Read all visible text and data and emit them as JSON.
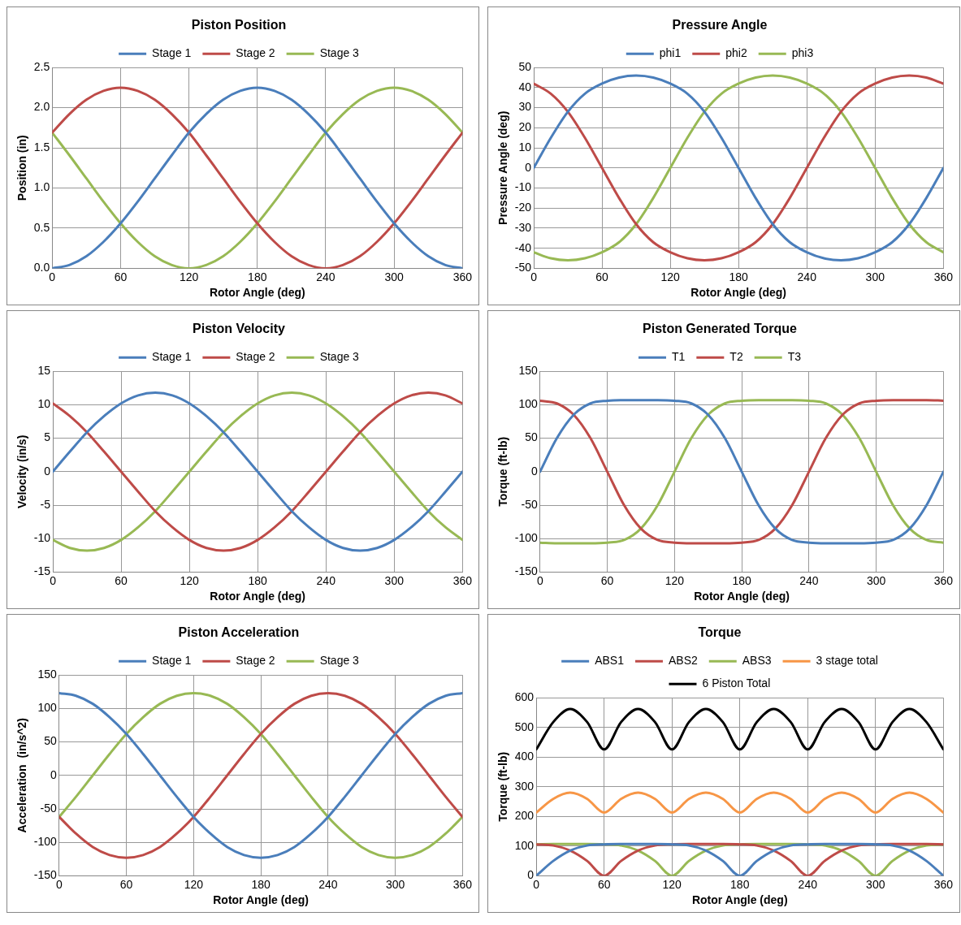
{
  "chart_data": [
    {
      "type": "line",
      "title": "Piston Position",
      "xlabel": "Rotor Angle (deg)",
      "ylabel": "Position (in)",
      "x": [
        0,
        15,
        30,
        45,
        60,
        75,
        90,
        105,
        120,
        135,
        150,
        165,
        180,
        195,
        210,
        225,
        240,
        255,
        270,
        285,
        300,
        315,
        330,
        345,
        360
      ],
      "xlim": [
        0,
        360
      ],
      "xticks": [
        0,
        60,
        120,
        180,
        240,
        300,
        360
      ],
      "ylim": [
        0,
        2.5
      ],
      "yticks": [
        {
          "value": 0,
          "label": "0.0"
        },
        {
          "value": 0.5,
          "label": "0.5"
        },
        {
          "value": 1,
          "label": "1.0"
        },
        {
          "value": 1.5,
          "label": "1.5"
        },
        {
          "value": 2,
          "label": "2.0"
        },
        2.5
      ],
      "grid": true,
      "legend": "top",
      "marker": "none",
      "series": [
        {
          "name": "Stage 1",
          "color": "#4a7ebb",
          "values": [
            0,
            0.04,
            0.15,
            0.33,
            0.56,
            0.83,
            1.12,
            1.41,
            1.69,
            1.92,
            2.1,
            2.21,
            2.25,
            2.21,
            2.1,
            1.92,
            1.69,
            1.41,
            1.12,
            0.83,
            0.56,
            0.33,
            0.15,
            0.04,
            0
          ]
        },
        {
          "name": "Stage 2",
          "color": "#be4b48",
          "values": [
            1.69,
            1.92,
            2.1,
            2.21,
            2.25,
            2.21,
            2.1,
            1.92,
            1.69,
            1.41,
            1.12,
            0.83,
            0.56,
            0.33,
            0.15,
            0.04,
            0,
            0.04,
            0.15,
            0.33,
            0.56,
            0.83,
            1.12,
            1.41,
            1.69
          ]
        },
        {
          "name": "Stage 3",
          "color": "#98b954",
          "values": [
            1.69,
            1.41,
            1.12,
            0.83,
            0.56,
            0.33,
            0.15,
            0.04,
            0,
            0.04,
            0.15,
            0.33,
            0.56,
            0.83,
            1.12,
            1.41,
            1.69,
            1.92,
            2.1,
            2.21,
            2.25,
            2.21,
            2.1,
            1.92,
            1.69
          ]
        }
      ]
    },
    {
      "type": "line",
      "title": "Pressure Angle",
      "xlabel": "Rotor Angle (deg)",
      "ylabel": "Pressure Angle (deg)",
      "x": [
        0,
        15,
        30,
        45,
        60,
        75,
        90,
        105,
        120,
        135,
        150,
        165,
        180,
        195,
        210,
        225,
        240,
        255,
        270,
        285,
        300,
        315,
        330,
        345,
        360
      ],
      "xlim": [
        0,
        360
      ],
      "xticks": [
        0,
        60,
        120,
        180,
        240,
        300,
        360
      ],
      "ylim": [
        -50,
        50
      ],
      "yticks": [
        -50,
        -40,
        -30,
        -20,
        -10,
        0,
        10,
        20,
        30,
        40,
        50
      ],
      "grid": true,
      "legend": "top",
      "marker": "none",
      "series": [
        {
          "name": "phi1",
          "color": "#4a7ebb",
          "values": [
            0,
            15,
            28,
            37,
            42,
            45,
            46,
            45,
            42,
            37,
            28,
            15,
            0,
            -15,
            -28,
            -37,
            -42,
            -45,
            -46,
            -45,
            -42,
            -37,
            -28,
            -15,
            0
          ]
        },
        {
          "name": "phi2",
          "color": "#be4b48",
          "values": [
            42,
            37,
            28,
            15,
            0,
            -15,
            -28,
            -37,
            -42,
            -45,
            -46,
            -45,
            -42,
            -37,
            -28,
            -15,
            0,
            15,
            28,
            37,
            42,
            45,
            46,
            45,
            42
          ]
        },
        {
          "name": "phi3",
          "color": "#98b954",
          "values": [
            -42,
            -45,
            -46,
            -45,
            -42,
            -37,
            -28,
            -15,
            0,
            15,
            28,
            37,
            42,
            45,
            46,
            45,
            42,
            37,
            28,
            15,
            0,
            -15,
            -28,
            -37,
            -42
          ]
        }
      ]
    },
    {
      "type": "line",
      "title": "Piston Velocity",
      "xlabel": "Rotor Angle (deg)",
      "ylabel": "Velocity (in/s)",
      "x": [
        0,
        15,
        30,
        45,
        60,
        75,
        90,
        105,
        120,
        135,
        150,
        165,
        180,
        195,
        210,
        225,
        240,
        255,
        270,
        285,
        300,
        315,
        330,
        345,
        360
      ],
      "xlim": [
        0,
        360
      ],
      "xticks": [
        0,
        60,
        120,
        180,
        240,
        300,
        360
      ],
      "ylim": [
        -15,
        15
      ],
      "yticks": [
        -15,
        -10,
        -5,
        0,
        5,
        10,
        15
      ],
      "grid": true,
      "legend": "top",
      "marker": "none",
      "series": [
        {
          "name": "Stage 1",
          "color": "#4a7ebb",
          "values": [
            0,
            3,
            5.9,
            8.3,
            10.2,
            11.4,
            11.8,
            11.4,
            10.2,
            8.3,
            5.9,
            3,
            0,
            -3,
            -5.9,
            -8.3,
            -10.2,
            -11.4,
            -11.8,
            -11.4,
            -10.2,
            -8.3,
            -5.9,
            -3,
            0
          ]
        },
        {
          "name": "Stage 2",
          "color": "#be4b48",
          "values": [
            10.2,
            8.3,
            5.9,
            3,
            0,
            -3,
            -5.9,
            -8.3,
            -10.2,
            -11.4,
            -11.8,
            -11.4,
            -10.2,
            -8.3,
            -5.9,
            -3,
            0,
            3,
            5.9,
            8.3,
            10.2,
            11.4,
            11.8,
            11.4,
            10.2
          ]
        },
        {
          "name": "Stage 3",
          "color": "#98b954",
          "values": [
            -10.2,
            -11.4,
            -11.8,
            -11.4,
            -10.2,
            -8.3,
            -5.9,
            -3,
            0,
            3,
            5.9,
            8.3,
            10.2,
            11.4,
            11.8,
            11.4,
            10.2,
            8.3,
            5.9,
            3,
            0,
            -3,
            -5.9,
            -8.3,
            -10.2
          ]
        }
      ]
    },
    {
      "type": "line",
      "title": "Piston Generated Torque",
      "xlabel": "Rotor Angle (deg)",
      "ylabel": "Torque (ft-lb)",
      "x": [
        0,
        15,
        30,
        45,
        60,
        75,
        90,
        105,
        120,
        135,
        150,
        165,
        180,
        195,
        210,
        225,
        240,
        255,
        270,
        285,
        300,
        315,
        330,
        345,
        360
      ],
      "xlim": [
        0,
        360
      ],
      "xticks": [
        0,
        60,
        120,
        180,
        240,
        300,
        360
      ],
      "ylim": [
        -150,
        150
      ],
      "yticks": [
        -150,
        -100,
        -50,
        0,
        50,
        100,
        150
      ],
      "grid": true,
      "legend": "top",
      "marker": "none",
      "series": [
        {
          "name": "T1",
          "color": "#4a7ebb",
          "values": [
            0,
            50,
            85,
            102,
            106,
            107,
            107,
            107,
            106,
            102,
            85,
            50,
            0,
            -50,
            -85,
            -102,
            -106,
            -107,
            -107,
            -107,
            -106,
            -102,
            -85,
            -50,
            0
          ]
        },
        {
          "name": "T2",
          "color": "#be4b48",
          "values": [
            106,
            102,
            85,
            50,
            0,
            -50,
            -85,
            -102,
            -106,
            -107,
            -107,
            -107,
            -106,
            -102,
            -85,
            -50,
            0,
            50,
            85,
            102,
            106,
            107,
            107,
            107,
            106
          ]
        },
        {
          "name": "T3",
          "color": "#98b954",
          "values": [
            -106,
            -107,
            -107,
            -107,
            -106,
            -102,
            -85,
            -50,
            0,
            50,
            85,
            102,
            106,
            107,
            107,
            107,
            106,
            102,
            85,
            50,
            0,
            -50,
            -85,
            -102,
            -106
          ]
        }
      ]
    },
    {
      "type": "line",
      "title": "Piston Acceleration",
      "xlabel": "Rotor Angle (deg)",
      "ylabel": "Acceleration  (in/s^2)",
      "x": [
        0,
        15,
        30,
        45,
        60,
        75,
        90,
        105,
        120,
        135,
        150,
        165,
        180,
        195,
        210,
        225,
        240,
        255,
        270,
        285,
        300,
        315,
        330,
        345,
        360
      ],
      "xlim": [
        0,
        360
      ],
      "xticks": [
        0,
        60,
        120,
        180,
        240,
        300,
        360
      ],
      "ylim": [
        -150,
        150
      ],
      "yticks": [
        -150,
        -100,
        -50,
        0,
        50,
        100,
        150
      ],
      "grid": true,
      "legend": "top",
      "marker": "none",
      "series": [
        {
          "name": "Stage 1",
          "color": "#4a7ebb",
          "values": [
            123,
            119,
            107,
            87,
            62,
            32,
            0,
            -32,
            -62,
            -87,
            -107,
            -119,
            -123,
            -119,
            -107,
            -87,
            -62,
            -32,
            0,
            32,
            62,
            87,
            107,
            119,
            123
          ]
        },
        {
          "name": "Stage 2",
          "color": "#be4b48",
          "values": [
            -62,
            -87,
            -107,
            -119,
            -123,
            -119,
            -107,
            -87,
            -62,
            -32,
            0,
            32,
            62,
            87,
            107,
            119,
            123,
            119,
            107,
            87,
            62,
            32,
            0,
            -32,
            -62
          ]
        },
        {
          "name": "Stage 3",
          "color": "#98b954",
          "values": [
            -62,
            -32,
            0,
            32,
            62,
            87,
            107,
            119,
            123,
            119,
            107,
            87,
            62,
            32,
            0,
            -32,
            -62,
            -87,
            -107,
            -119,
            -123,
            -119,
            -107,
            -87,
            -62
          ]
        }
      ]
    },
    {
      "type": "line",
      "title": "Torque",
      "xlabel": "Rotor Angle (deg)",
      "ylabel": "Torque (ft-lb)",
      "x": [
        0,
        15,
        30,
        45,
        60,
        75,
        90,
        105,
        120,
        135,
        150,
        165,
        180,
        195,
        210,
        225,
        240,
        255,
        270,
        285,
        300,
        315,
        330,
        345,
        360
      ],
      "xlim": [
        0,
        360
      ],
      "xticks": [
        0,
        60,
        120,
        180,
        240,
        300,
        360
      ],
      "ylim": [
        0,
        600
      ],
      "yticks": [
        0,
        100,
        200,
        300,
        400,
        500,
        600
      ],
      "grid": true,
      "legend": "top",
      "marker": "none",
      "series": [
        {
          "name": "ABS1",
          "color": "#4a7ebb",
          "values": [
            0,
            50,
            85,
            102,
            106,
            107,
            107,
            107,
            106,
            102,
            85,
            50,
            0,
            50,
            85,
            102,
            106,
            107,
            107,
            107,
            106,
            102,
            85,
            50,
            0
          ]
        },
        {
          "name": "ABS2",
          "color": "#be4b48",
          "values": [
            106,
            102,
            85,
            50,
            0,
            50,
            85,
            102,
            106,
            107,
            107,
            107,
            106,
            102,
            85,
            50,
            0,
            50,
            85,
            102,
            106,
            107,
            107,
            107,
            106
          ]
        },
        {
          "name": "ABS3",
          "color": "#98b954",
          "values": [
            106,
            107,
            107,
            107,
            106,
            102,
            85,
            50,
            0,
            50,
            85,
            102,
            106,
            107,
            107,
            107,
            106,
            102,
            85,
            50,
            0,
            50,
            85,
            102,
            106
          ]
        },
        {
          "name": "3 stage total",
          "color": "#f79646",
          "values": [
            213,
            259,
            280,
            259,
            213,
            259,
            280,
            259,
            213,
            259,
            280,
            259,
            213,
            259,
            280,
            259,
            213,
            259,
            280,
            259,
            213,
            259,
            280,
            259,
            213
          ]
        },
        {
          "name": "6 Piston Total",
          "color": "#000000",
          "values": [
            426,
            518,
            562,
            518,
            426,
            518,
            562,
            518,
            426,
            518,
            562,
            518,
            426,
            518,
            562,
            518,
            426,
            518,
            562,
            518,
            426,
            518,
            562,
            518,
            426
          ]
        }
      ]
    }
  ]
}
